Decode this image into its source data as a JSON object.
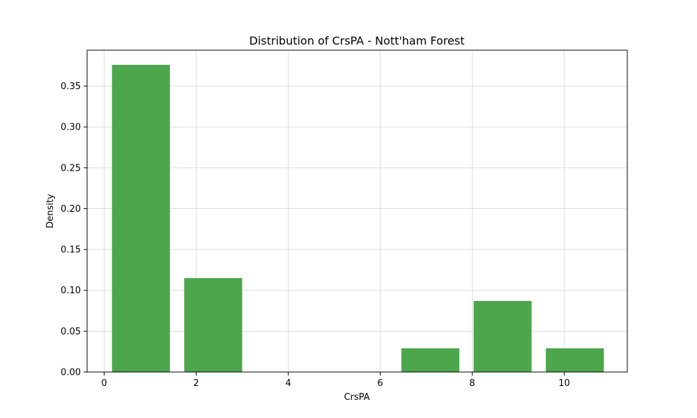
{
  "chart_data": {
    "type": "bar",
    "title": "Distribution of CrsPA - Nott'ham Forest",
    "xlabel": "CrsPA",
    "ylabel": "Density",
    "xlim": [
      -0.37,
      11.37
    ],
    "ylim": [
      0,
      0.394
    ],
    "xticks": [
      0,
      2,
      4,
      6,
      8,
      10
    ],
    "yticks": [
      0.0,
      0.05,
      0.1,
      0.15,
      0.2,
      0.25,
      0.3,
      0.35
    ],
    "grid": true,
    "bar_color": "#4ca64c",
    "bins": [
      {
        "x0": 0.17,
        "x1": 1.43,
        "value": 0.376
      },
      {
        "x0": 1.74,
        "x1": 3.0,
        "value": 0.115
      },
      {
        "x0": 6.46,
        "x1": 7.72,
        "value": 0.029
      },
      {
        "x0": 8.03,
        "x1": 9.29,
        "value": 0.087
      },
      {
        "x0": 9.6,
        "x1": 10.86,
        "value": 0.029
      }
    ]
  }
}
